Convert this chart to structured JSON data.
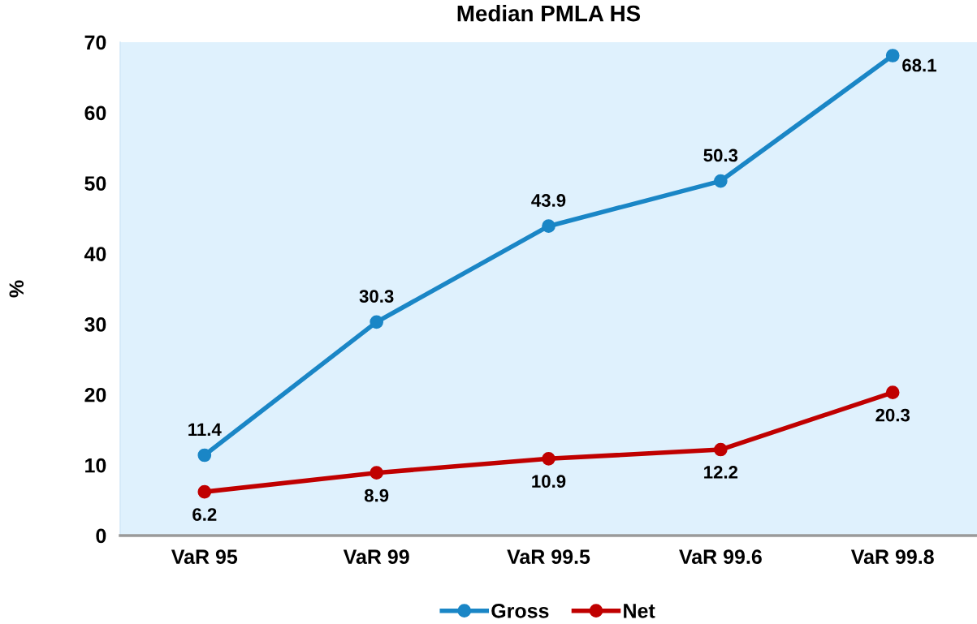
{
  "chart_data": {
    "type": "line",
    "title": "Median PMLA HS",
    "ylabel": "%",
    "categories": [
      "VaR 95",
      "VaR 99",
      "VaR 99.5",
      "VaR 99.6",
      "VaR 99.8"
    ],
    "series": [
      {
        "name": "Gross",
        "color": "#1a86c6",
        "values": [
          11.4,
          30.3,
          43.9,
          50.3,
          68.1
        ]
      },
      {
        "name": "Net",
        "color": "#c00000",
        "values": [
          6.2,
          8.9,
          10.9,
          12.2,
          20.3
        ]
      }
    ],
    "ylim": [
      0,
      70
    ],
    "yticks": [
      0,
      10,
      20,
      30,
      40,
      50,
      60,
      70
    ],
    "data_labels": true,
    "legend": "bottom",
    "marker": "circle",
    "line_style": "solid",
    "grid": false
  }
}
